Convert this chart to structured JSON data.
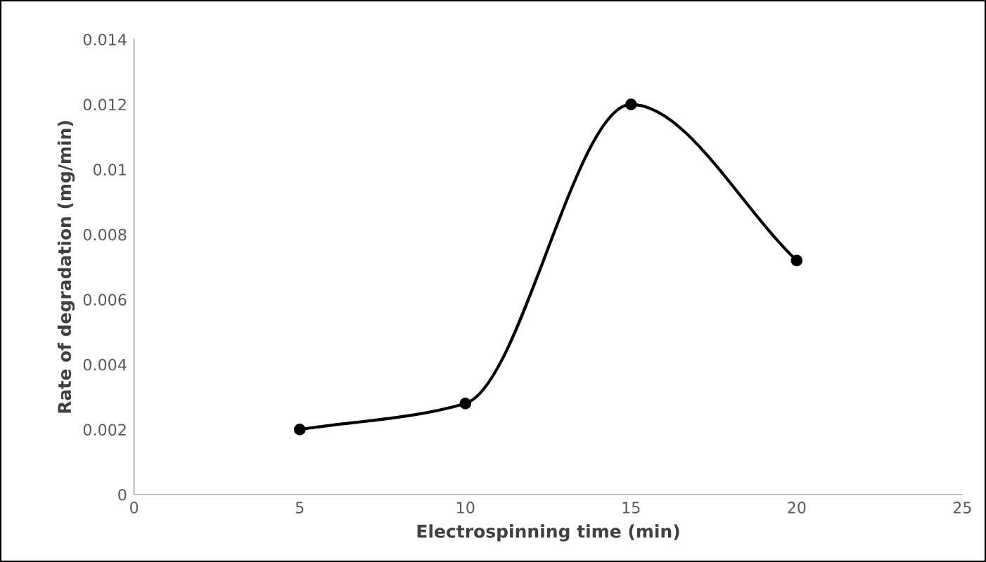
{
  "chart_data": {
    "type": "line",
    "xlabel": "Electrospinning time (min)",
    "ylabel": "Rate of degradation (mg/min)",
    "x": [
      5,
      10,
      15,
      20
    ],
    "series": [
      {
        "color": "#000000",
        "values": [
          0.002,
          0.0028,
          0.012,
          0.0072
        ]
      }
    ],
    "xlim": [
      0,
      25
    ],
    "xticks": [
      0,
      5,
      10,
      15,
      20,
      25
    ],
    "ylim": [
      0,
      0.014
    ],
    "yticks": [
      0,
      0.002,
      0.004,
      0.006,
      0.008,
      0.01,
      0.012,
      0.014
    ],
    "marker": "circle",
    "line_style": "solid"
  }
}
